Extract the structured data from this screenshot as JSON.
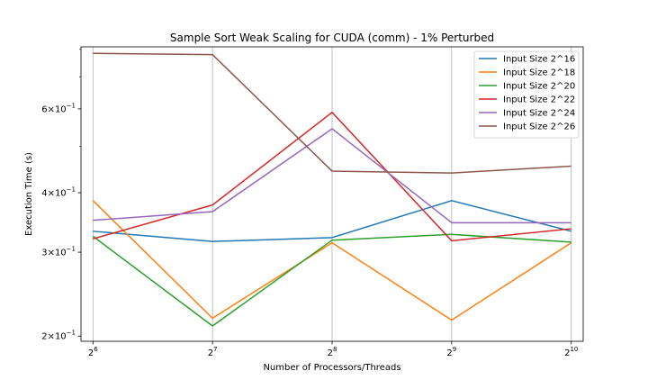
{
  "chart_data": {
    "type": "line",
    "title": "Sample Sort Weak Scaling for CUDA (comm) - 1% Perturbed",
    "xlabel": "Number of Processors/Threads",
    "ylabel": "Execution Time (s)",
    "x": [
      64,
      128,
      256,
      512,
      1024
    ],
    "x_tick_labels": [
      {
        "base": "2",
        "exp": "6"
      },
      {
        "base": "2",
        "exp": "7"
      },
      {
        "base": "2",
        "exp": "8"
      },
      {
        "base": "2",
        "exp": "9"
      },
      {
        "base": "2",
        "exp": "10"
      }
    ],
    "x_scale": "log2",
    "y_scale": "log",
    "ylim": [
      0.195,
      0.81
    ],
    "y_ticks": [
      {
        "value": 0.2,
        "mantissa": "2",
        "base": "10",
        "exp": "−1"
      },
      {
        "value": 0.3,
        "mantissa": "3",
        "base": "10",
        "exp": "−1"
      },
      {
        "value": 0.4,
        "mantissa": "4",
        "base": "10",
        "exp": "−1"
      },
      {
        "value": 0.6,
        "mantissa": "6",
        "base": "10",
        "exp": "−1"
      }
    ],
    "y_minor_ticks": [
      0.5,
      0.7,
      0.8
    ],
    "grid": "x-major",
    "legend_position": "top-right",
    "series": [
      {
        "name": "Input Size 2^16",
        "color": "#1f77b4",
        "values": [
          0.332,
          0.316,
          0.322,
          0.385,
          0.332
        ]
      },
      {
        "name": "Input Size 2^18",
        "color": "#ff7f0e",
        "values": [
          0.385,
          0.218,
          0.314,
          0.216,
          0.314
        ]
      },
      {
        "name": "Input Size 2^20",
        "color": "#2ca02c",
        "values": [
          0.324,
          0.21,
          0.318,
          0.327,
          0.315
        ]
      },
      {
        "name": "Input Size 2^22",
        "color": "#d62728",
        "values": [
          0.32,
          0.377,
          0.59,
          0.317,
          0.336
        ]
      },
      {
        "name": "Input Size 2^24",
        "color": "#9467bd",
        "values": [
          0.35,
          0.365,
          0.545,
          0.346,
          0.346
        ]
      },
      {
        "name": "Input Size 2^26",
        "color": "#8c564b",
        "values": [
          0.785,
          0.78,
          0.444,
          0.44,
          0.455
        ]
      }
    ]
  }
}
